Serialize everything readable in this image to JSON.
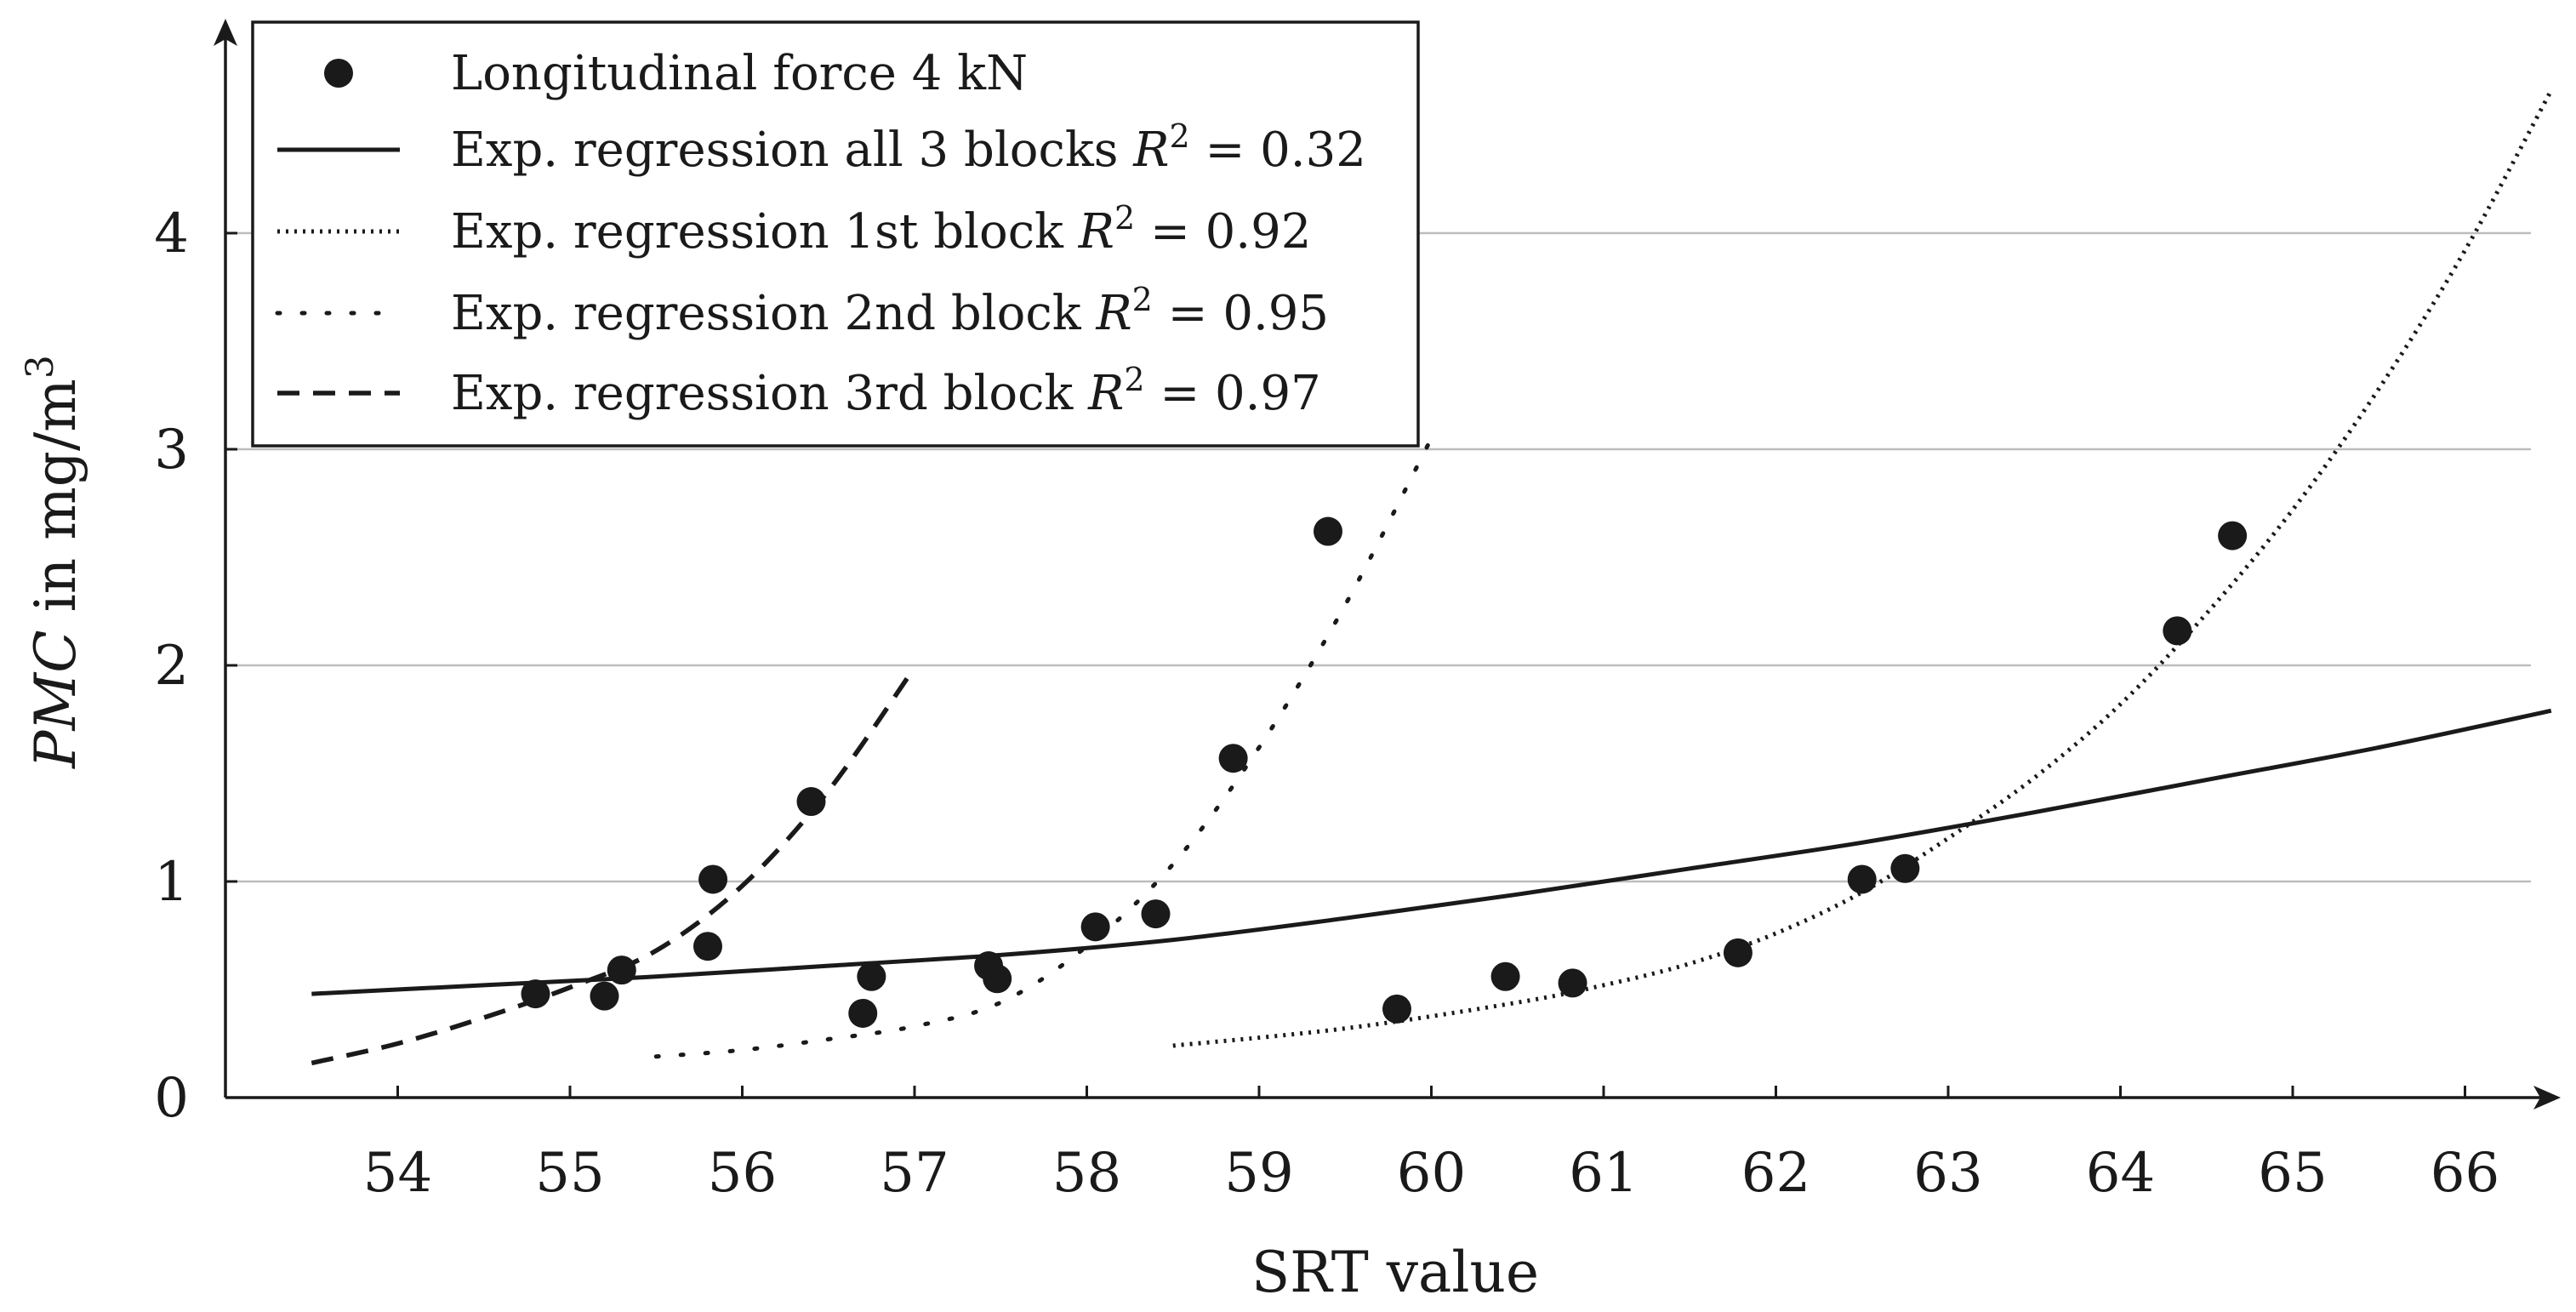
{
  "chart_data": {
    "type": "scatter",
    "xlabel": "SRT value",
    "ylabel": "PMC in mg/m",
    "ylabel_sup": "3",
    "xlim": [
      53,
      67
    ],
    "ylim": [
      0,
      5
    ],
    "x_ticks": [
      54,
      55,
      56,
      57,
      58,
      59,
      60,
      61,
      62,
      63,
      64,
      65,
      66
    ],
    "y_ticks": [
      0,
      1,
      2,
      3,
      4
    ],
    "grid": "horizontal",
    "legend_position": "top-left",
    "colors": {
      "points": "#1a1a1a",
      "lines": "#1a1a1a",
      "grid": "#bdbdbd"
    },
    "scatter": {
      "name": "Longitudinal force 4 kN",
      "x": [
        54.8,
        55.2,
        55.3,
        55.8,
        55.83,
        56.4,
        56.7,
        56.75,
        57.43,
        57.48,
        58.05,
        58.4,
        58.85,
        59.4,
        59.8,
        60.43,
        60.82,
        61.78,
        62.5,
        62.75,
        64.33,
        64.65
      ],
      "y": [
        0.48,
        0.47,
        0.59,
        0.7,
        1.01,
        1.37,
        0.39,
        0.56,
        0.61,
        0.55,
        0.79,
        0.85,
        1.57,
        2.62,
        0.41,
        0.56,
        0.53,
        0.67,
        1.01,
        1.06,
        2.16,
        2.6
      ]
    },
    "series": [
      {
        "name": "Exp. regression all 3 blocks",
        "r2": "0.32",
        "style": "solid",
        "x": [
          53.5,
          54.5,
          55.5,
          56.5,
          57.5,
          58.5,
          59.5,
          60.5,
          61.5,
          62.5,
          63.5,
          64.5,
          65.5,
          66.5
        ],
        "y": [
          0.48,
          0.52,
          0.56,
          0.61,
          0.66,
          0.73,
          0.83,
          0.94,
          1.06,
          1.18,
          1.32,
          1.47,
          1.62,
          1.79
        ]
      },
      {
        "name": "Exp. regression 1st block",
        "r2": "0.92",
        "style": "dense-dotted",
        "x": [
          58.5,
          59.5,
          60.5,
          61.0,
          61.5,
          62.0,
          62.5,
          63.0,
          63.5,
          64.0,
          64.5,
          65.0,
          65.5,
          66.0,
          66.5
        ],
        "y": [
          0.24,
          0.32,
          0.44,
          0.52,
          0.62,
          0.76,
          0.95,
          1.2,
          1.48,
          1.82,
          2.24,
          2.72,
          3.28,
          3.92,
          4.66
        ]
      },
      {
        "name": "Exp. regression 2nd block",
        "r2": "0.95",
        "style": "sparse-dotted",
        "x": [
          55.5,
          56.0,
          56.5,
          57.0,
          57.5,
          58.0,
          58.5,
          59.0,
          59.5,
          60.0
        ],
        "y": [
          0.19,
          0.22,
          0.27,
          0.33,
          0.44,
          0.7,
          1.08,
          1.62,
          2.28,
          3.05
        ]
      },
      {
        "name": "Exp. regression 3rd block",
        "r2": "0.97",
        "style": "dashed",
        "x": [
          53.5,
          54.0,
          54.5,
          55.0,
          55.5,
          56.0,
          56.5,
          57.0
        ],
        "y": [
          0.16,
          0.25,
          0.37,
          0.51,
          0.68,
          0.98,
          1.42,
          1.99
        ]
      }
    ],
    "legend": [
      {
        "label": "Longitudinal force 4 kN",
        "r2": ""
      },
      {
        "label": "Exp. regression all 3 blocks",
        "r2": "0.32"
      },
      {
        "label": "Exp. regression 1st block",
        "r2": "0.92"
      },
      {
        "label": "Exp. regression 2nd block",
        "r2": "0.95"
      },
      {
        "label": "Exp. regression 3rd block",
        "r2": "0.97"
      }
    ]
  }
}
